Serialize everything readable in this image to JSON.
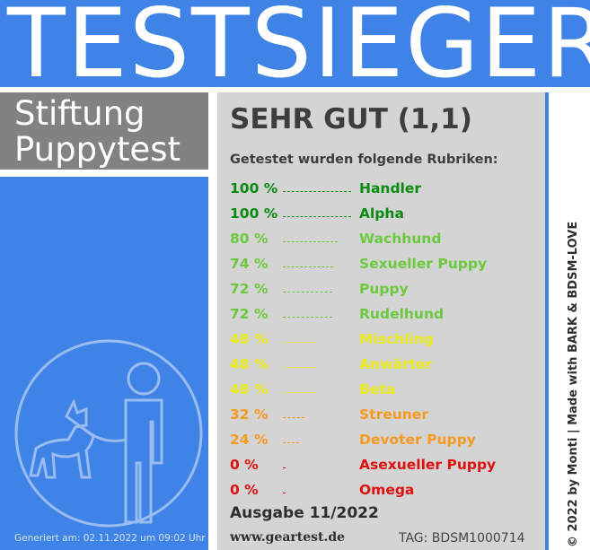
{
  "banner": {
    "title": "TESTSIEGER"
  },
  "publisher": {
    "line1": "Stiftung",
    "line2": "Puppytest"
  },
  "result": {
    "grade": "SEHR GUT (1,1)",
    "intro": "Getestet wurden folgende Rubriken:",
    "rubrics": [
      {
        "percent": "100 %",
        "name": "Handler",
        "value": 100,
        "color": "#0b8a10"
      },
      {
        "percent": "100 %",
        "name": "Alpha",
        "value": 100,
        "color": "#0b8a10"
      },
      {
        "percent": "80 %",
        "name": "Wachhund",
        "value": 80,
        "color": "#6cc93e"
      },
      {
        "percent": "74 %",
        "name": "Sexueller Puppy",
        "value": 74,
        "color": "#6cc93e"
      },
      {
        "percent": "72 %",
        "name": "Puppy",
        "value": 72,
        "color": "#6cc93e"
      },
      {
        "percent": "72 %",
        "name": "Rudelhund",
        "value": 72,
        "color": "#6cc93e"
      },
      {
        "percent": "48 %",
        "name": "Mischling",
        "value": 48,
        "color": "#ecec1a"
      },
      {
        "percent": "48 %",
        "name": "Anwärter",
        "value": 48,
        "color": "#ecec1a"
      },
      {
        "percent": "48 %",
        "name": "Beta",
        "value": 48,
        "color": "#ecec1a"
      },
      {
        "percent": "32 %",
        "name": "Streuner",
        "value": 32,
        "color": "#f59a1f"
      },
      {
        "percent": "24 %",
        "name": "Devoter Puppy",
        "value": 24,
        "color": "#f59a1f"
      },
      {
        "percent": "0 %",
        "name": "Asexueller Puppy",
        "value": 0,
        "color": "#e00f0f"
      },
      {
        "percent": "0 %",
        "name": "Omega",
        "value": 0,
        "color": "#e00f0f"
      }
    ],
    "issue": "Ausgabe 11/2022",
    "website": "www.geartest.de",
    "tag": "TAG: BDSM1000714"
  },
  "credit": "© 2022 by Monti | Made with BARK & BDSM-LOVE",
  "generated": "Generiert am: 02.11.2022 um 09:02 Uhr",
  "colors": {
    "blue": "#3f83e6",
    "grey_box": "#828282",
    "panel": "#d4d4d4"
  },
  "icon": "puppy-handler-logo-icon"
}
